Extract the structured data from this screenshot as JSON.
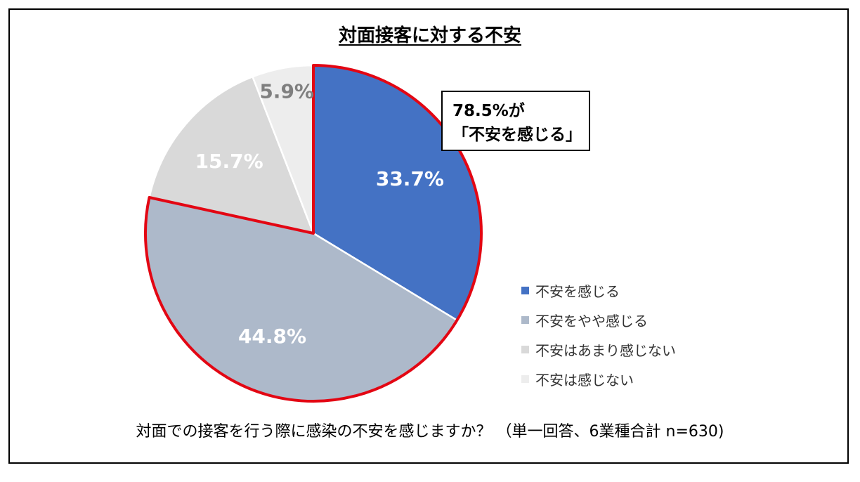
{
  "title": "対面接客に対する不安",
  "callout": {
    "line1": "78.5%が",
    "line2": "「不安を感じる」"
  },
  "question": "対面での接客を行う際に感染の不安を感じますか？ （単一回答、6業種合計 n=630)",
  "chart_data": {
    "type": "pie",
    "title": "対面接客に対する不安",
    "categories": [
      "不安を感じる",
      "不安をやや感じる",
      "不安はあまり感じない",
      "不安は感じない"
    ],
    "values": [
      33.7,
      44.8,
      15.7,
      5.9
    ],
    "labels": [
      "33.7%",
      "44.8%",
      "15.7%",
      "5.9%"
    ],
    "colors": [
      "#4472C4",
      "#ADB9CA",
      "#D9D9D9",
      "#EDEDED"
    ],
    "label_colors": [
      "#FFFFFF",
      "#FFFFFF",
      "#FFFFFF",
      "#7F7F7F"
    ],
    "highlight_slices": [
      0,
      1
    ],
    "highlight_color": "#E30613",
    "start_angle_deg": 0,
    "direction": "clockwise",
    "legend_position": "right"
  }
}
